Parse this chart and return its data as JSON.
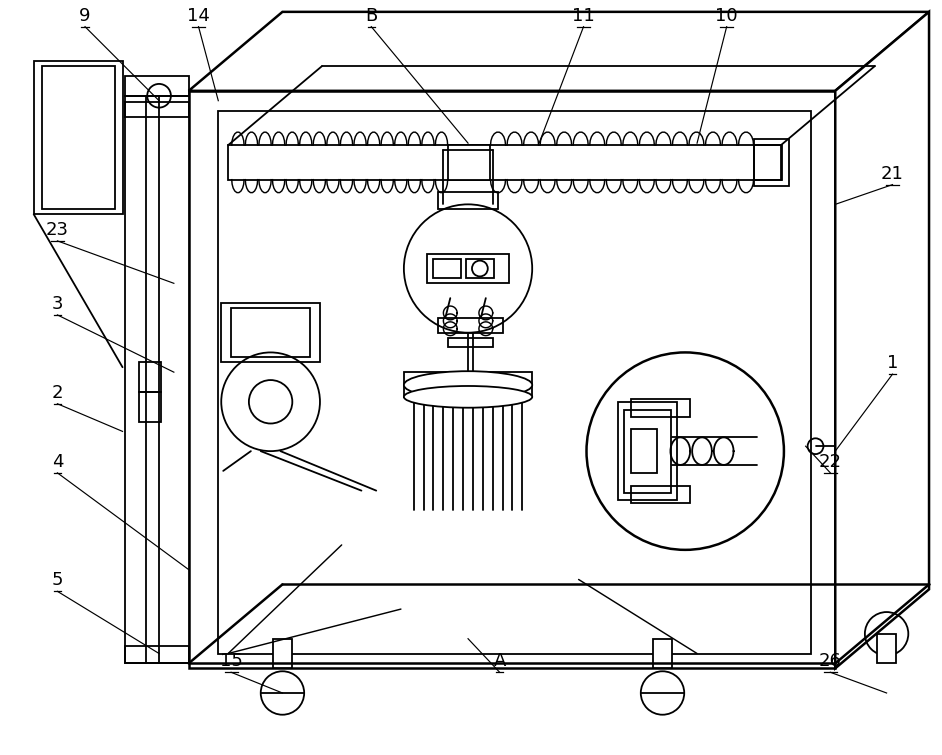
{
  "bg_color": "#ffffff",
  "line_color": "#000000",
  "lw": 1.3,
  "tlw": 1.8,
  "fig_width": 9.42,
  "fig_height": 7.55
}
